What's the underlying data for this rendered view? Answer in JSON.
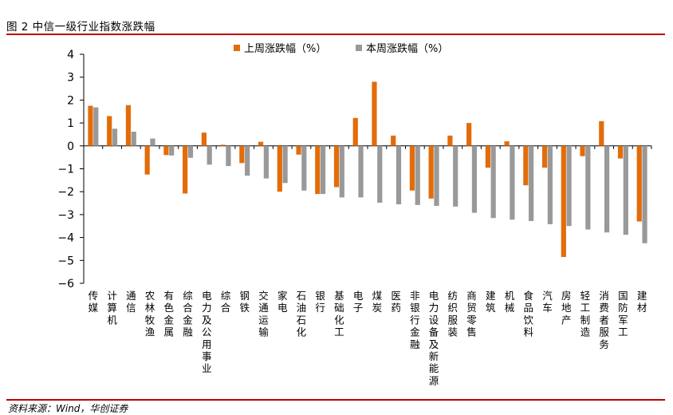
{
  "title": "图 2 中信一级行业指数涨跌幅",
  "source": "资料来源：Wind，华创证券",
  "chart_data": {
    "type": "bar",
    "categories": [
      "传媒",
      "计算机",
      "通信",
      "农林牧渔",
      "有色金属",
      "综合金融",
      "电力及公用事业",
      "综合",
      "钢铁",
      "交通运输",
      "家电",
      "石油石化",
      "银行",
      "基础化工",
      "电子",
      "煤炭",
      "医药",
      "非银行金融",
      "电力设备及新能源",
      "纺织服装",
      "商贸零售",
      "建筑",
      "机械",
      "食品饮料",
      "汽车",
      "房地产",
      "轻工制造",
      "消费者服务",
      "国防军工",
      "建材"
    ],
    "series": [
      {
        "name": "上周涨跌幅（%）",
        "color": "#e36c09",
        "values": [
          1.75,
          1.3,
          1.78,
          -1.25,
          -0.4,
          -2.08,
          0.58,
          0.05,
          -0.75,
          0.18,
          -2.0,
          -0.38,
          -2.1,
          -1.8,
          1.22,
          2.8,
          0.45,
          -1.95,
          -2.3,
          0.45,
          1.0,
          -0.95,
          0.2,
          -1.72,
          -0.95,
          -4.85,
          -0.45,
          1.08,
          -0.55,
          -3.3
        ]
      },
      {
        "name": "本周涨跌幅（%）",
        "color": "#999999",
        "values": [
          1.68,
          0.75,
          0.62,
          0.32,
          -0.42,
          -0.52,
          -0.82,
          -0.88,
          -1.3,
          -1.42,
          -1.62,
          -1.95,
          -2.1,
          -2.25,
          -2.25,
          -2.48,
          -2.55,
          -2.58,
          -2.62,
          -2.65,
          -2.92,
          -3.15,
          -3.22,
          -3.28,
          -3.42,
          -3.5,
          -3.65,
          -3.78,
          -3.88,
          -4.25
        ]
      }
    ],
    "ylim": [
      -6,
      4
    ],
    "yticks": [
      4,
      3,
      2,
      1,
      0,
      -1,
      -2,
      -3,
      -4,
      -5,
      -6
    ],
    "ytick_labels": [
      "4",
      "3",
      "2",
      "1",
      "0",
      "−1",
      "−2",
      "−3",
      "−4",
      "−5",
      "−6"
    ],
    "legend_position": "top-center",
    "grid": false
  }
}
